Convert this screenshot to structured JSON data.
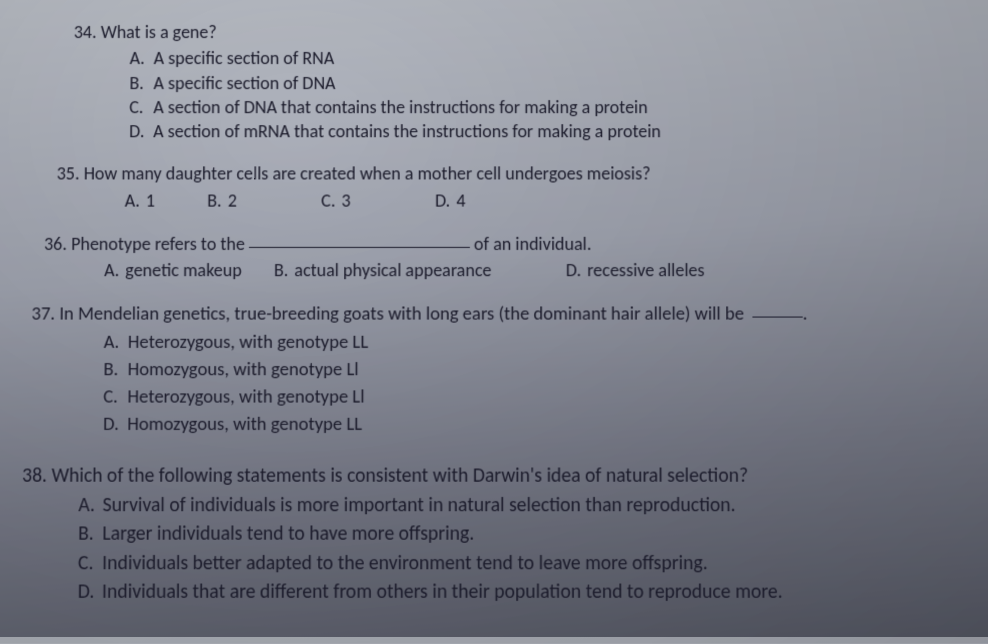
{
  "background_gradient": [
    "#b8bcc4",
    "#a0a4b0",
    "#7b7e8c",
    "#5a5d6a"
  ],
  "text_color": "#1a1a2a",
  "font_family": "Calibri",
  "questions": {
    "q34": {
      "number": "34.",
      "stem": "What is a gene?",
      "opts": [
        {
          "letter": "A.",
          "text": "A specific section of RNA"
        },
        {
          "letter": "B.",
          "text": "A specific section of DNA"
        },
        {
          "letter": "C.",
          "text": "A section of DNA that contains the instructions for making a protein"
        },
        {
          "letter": "D.",
          "text": "A section of mRNA that contains the instructions for making a protein"
        }
      ]
    },
    "q35": {
      "number": "35.",
      "stem_rest": "How many daughter cells are created when a mother cell undergoes meiosis?",
      "opts": [
        {
          "letter": "A.",
          "text": "1"
        },
        {
          "letter": "B.",
          "text": "2"
        },
        {
          "letter": "C.",
          "text": "3"
        },
        {
          "letter": "D.",
          "text": "4"
        }
      ]
    },
    "q36": {
      "number": "36.",
      "stem_before": "Phenotype refers to the ",
      "stem_after": " of an individual.",
      "opts": [
        {
          "letter": "A.",
          "text": "genetic makeup"
        },
        {
          "letter": "B.",
          "text": "actual physical appearance"
        },
        {
          "letter": "D.",
          "text": "recessive alleles"
        }
      ]
    },
    "q37": {
      "number": "37.",
      "stem_before": "In Mendelian genetics, true-breeding goats with long ears (the dominant hair allele) will be ",
      "stem_after": ".",
      "opts": [
        {
          "letter": "A.",
          "text": "Heterozygous, with genotype LL"
        },
        {
          "letter": "B.",
          "text": "Homozygous, with genotype Ll"
        },
        {
          "letter": "C.",
          "text": "Heterozygous, with genotype Ll"
        },
        {
          "letter": "D.",
          "text": "Homozygous, with genotype LL"
        }
      ]
    },
    "q38": {
      "number": "38.",
      "stem": "Which of the following statements is consistent with Darwin's idea of natural selection?",
      "opts": [
        {
          "letter": "A.",
          "text": "Survival of individuals is more important in natural selection than reproduction."
        },
        {
          "letter": "B.",
          "text": "Larger individuals tend to have more offspring."
        },
        {
          "letter": "C.",
          "text": "Individuals better adapted to the environment tend to leave more offspring."
        },
        {
          "letter": "D.",
          "text": "Individuals that are different from others in their population tend to reproduce more."
        }
      ]
    }
  }
}
